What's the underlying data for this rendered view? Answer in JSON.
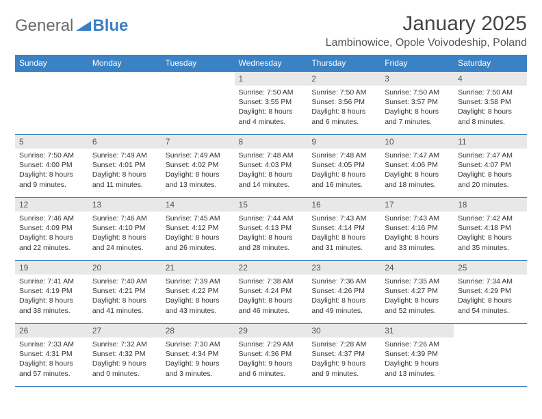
{
  "logo": {
    "word1": "General",
    "word2": "Blue"
  },
  "title": "January 2025",
  "location": "Lambinowice, Opole Voivodeship, Poland",
  "colors": {
    "header_bg": "#3b82c4",
    "header_text": "#ffffff",
    "daynum_bg": "#e8e8e8",
    "row_border": "#3b82c4",
    "body_text": "#333333",
    "logo_general": "#6b6b6b",
    "logo_blue": "#3b7fc4"
  },
  "weekdays": [
    "Sunday",
    "Monday",
    "Tuesday",
    "Wednesday",
    "Thursday",
    "Friday",
    "Saturday"
  ],
  "weeks": [
    [
      {
        "empty": true
      },
      {
        "empty": true
      },
      {
        "empty": true
      },
      {
        "day": "1",
        "sunrise": "Sunrise: 7:50 AM",
        "sunset": "Sunset: 3:55 PM",
        "daylight": "Daylight: 8 hours and 4 minutes."
      },
      {
        "day": "2",
        "sunrise": "Sunrise: 7:50 AM",
        "sunset": "Sunset: 3:56 PM",
        "daylight": "Daylight: 8 hours and 6 minutes."
      },
      {
        "day": "3",
        "sunrise": "Sunrise: 7:50 AM",
        "sunset": "Sunset: 3:57 PM",
        "daylight": "Daylight: 8 hours and 7 minutes."
      },
      {
        "day": "4",
        "sunrise": "Sunrise: 7:50 AM",
        "sunset": "Sunset: 3:58 PM",
        "daylight": "Daylight: 8 hours and 8 minutes."
      }
    ],
    [
      {
        "day": "5",
        "sunrise": "Sunrise: 7:50 AM",
        "sunset": "Sunset: 4:00 PM",
        "daylight": "Daylight: 8 hours and 9 minutes."
      },
      {
        "day": "6",
        "sunrise": "Sunrise: 7:49 AM",
        "sunset": "Sunset: 4:01 PM",
        "daylight": "Daylight: 8 hours and 11 minutes."
      },
      {
        "day": "7",
        "sunrise": "Sunrise: 7:49 AM",
        "sunset": "Sunset: 4:02 PM",
        "daylight": "Daylight: 8 hours and 13 minutes."
      },
      {
        "day": "8",
        "sunrise": "Sunrise: 7:48 AM",
        "sunset": "Sunset: 4:03 PM",
        "daylight": "Daylight: 8 hours and 14 minutes."
      },
      {
        "day": "9",
        "sunrise": "Sunrise: 7:48 AM",
        "sunset": "Sunset: 4:05 PM",
        "daylight": "Daylight: 8 hours and 16 minutes."
      },
      {
        "day": "10",
        "sunrise": "Sunrise: 7:47 AM",
        "sunset": "Sunset: 4:06 PM",
        "daylight": "Daylight: 8 hours and 18 minutes."
      },
      {
        "day": "11",
        "sunrise": "Sunrise: 7:47 AM",
        "sunset": "Sunset: 4:07 PM",
        "daylight": "Daylight: 8 hours and 20 minutes."
      }
    ],
    [
      {
        "day": "12",
        "sunrise": "Sunrise: 7:46 AM",
        "sunset": "Sunset: 4:09 PM",
        "daylight": "Daylight: 8 hours and 22 minutes."
      },
      {
        "day": "13",
        "sunrise": "Sunrise: 7:46 AM",
        "sunset": "Sunset: 4:10 PM",
        "daylight": "Daylight: 8 hours and 24 minutes."
      },
      {
        "day": "14",
        "sunrise": "Sunrise: 7:45 AM",
        "sunset": "Sunset: 4:12 PM",
        "daylight": "Daylight: 8 hours and 26 minutes."
      },
      {
        "day": "15",
        "sunrise": "Sunrise: 7:44 AM",
        "sunset": "Sunset: 4:13 PM",
        "daylight": "Daylight: 8 hours and 28 minutes."
      },
      {
        "day": "16",
        "sunrise": "Sunrise: 7:43 AM",
        "sunset": "Sunset: 4:14 PM",
        "daylight": "Daylight: 8 hours and 31 minutes."
      },
      {
        "day": "17",
        "sunrise": "Sunrise: 7:43 AM",
        "sunset": "Sunset: 4:16 PM",
        "daylight": "Daylight: 8 hours and 33 minutes."
      },
      {
        "day": "18",
        "sunrise": "Sunrise: 7:42 AM",
        "sunset": "Sunset: 4:18 PM",
        "daylight": "Daylight: 8 hours and 35 minutes."
      }
    ],
    [
      {
        "day": "19",
        "sunrise": "Sunrise: 7:41 AM",
        "sunset": "Sunset: 4:19 PM",
        "daylight": "Daylight: 8 hours and 38 minutes."
      },
      {
        "day": "20",
        "sunrise": "Sunrise: 7:40 AM",
        "sunset": "Sunset: 4:21 PM",
        "daylight": "Daylight: 8 hours and 41 minutes."
      },
      {
        "day": "21",
        "sunrise": "Sunrise: 7:39 AM",
        "sunset": "Sunset: 4:22 PM",
        "daylight": "Daylight: 8 hours and 43 minutes."
      },
      {
        "day": "22",
        "sunrise": "Sunrise: 7:38 AM",
        "sunset": "Sunset: 4:24 PM",
        "daylight": "Daylight: 8 hours and 46 minutes."
      },
      {
        "day": "23",
        "sunrise": "Sunrise: 7:36 AM",
        "sunset": "Sunset: 4:26 PM",
        "daylight": "Daylight: 8 hours and 49 minutes."
      },
      {
        "day": "24",
        "sunrise": "Sunrise: 7:35 AM",
        "sunset": "Sunset: 4:27 PM",
        "daylight": "Daylight: 8 hours and 52 minutes."
      },
      {
        "day": "25",
        "sunrise": "Sunrise: 7:34 AM",
        "sunset": "Sunset: 4:29 PM",
        "daylight": "Daylight: 8 hours and 54 minutes."
      }
    ],
    [
      {
        "day": "26",
        "sunrise": "Sunrise: 7:33 AM",
        "sunset": "Sunset: 4:31 PM",
        "daylight": "Daylight: 8 hours and 57 minutes."
      },
      {
        "day": "27",
        "sunrise": "Sunrise: 7:32 AM",
        "sunset": "Sunset: 4:32 PM",
        "daylight": "Daylight: 9 hours and 0 minutes."
      },
      {
        "day": "28",
        "sunrise": "Sunrise: 7:30 AM",
        "sunset": "Sunset: 4:34 PM",
        "daylight": "Daylight: 9 hours and 3 minutes."
      },
      {
        "day": "29",
        "sunrise": "Sunrise: 7:29 AM",
        "sunset": "Sunset: 4:36 PM",
        "daylight": "Daylight: 9 hours and 6 minutes."
      },
      {
        "day": "30",
        "sunrise": "Sunrise: 7:28 AM",
        "sunset": "Sunset: 4:37 PM",
        "daylight": "Daylight: 9 hours and 9 minutes."
      },
      {
        "day": "31",
        "sunrise": "Sunrise: 7:26 AM",
        "sunset": "Sunset: 4:39 PM",
        "daylight": "Daylight: 9 hours and 13 minutes."
      },
      {
        "empty": true
      }
    ]
  ]
}
